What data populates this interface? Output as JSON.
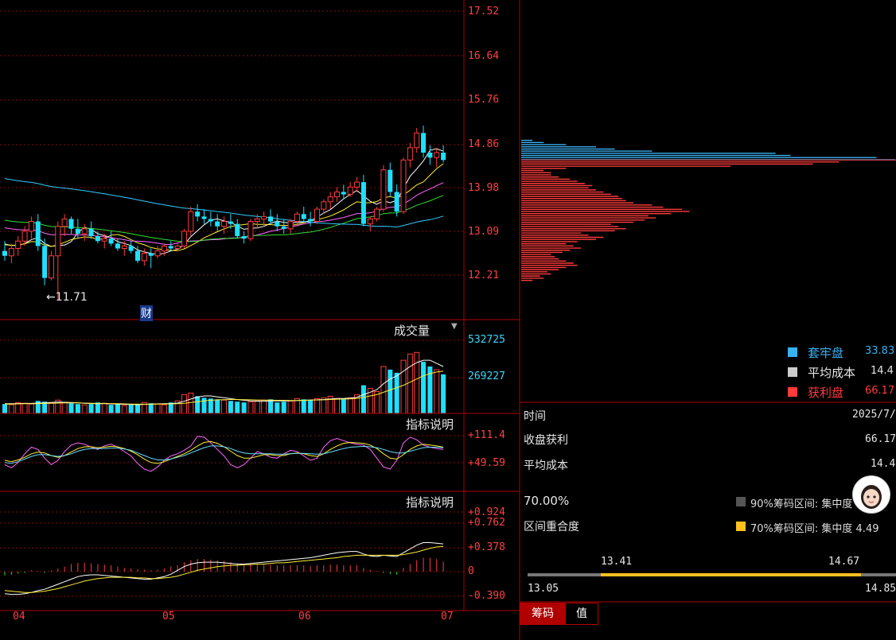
{
  "colors": {
    "up": "#ff3b3b",
    "down": "#1ee0ff",
    "grid_red": "#7a1010",
    "axis_red": "#ff4040",
    "ma5": "#ffffff",
    "ma10": "#ffee33",
    "ma20": "#ff66ff",
    "ma30": "#33dd33",
    "ma60": "#33ccff",
    "chip_profit": "#ff3b3b",
    "chip_trapped": "#3ab0f0",
    "orange_bar": "#ffc020"
  },
  "chart_data": {
    "type": "candlestick",
    "price_axis_ticks": [
      "17.52",
      "16.64",
      "15.76",
      "14.86",
      "13.98",
      "13.09",
      "12.21"
    ],
    "ylim": [
      11.48,
      17.6
    ],
    "low_marker": "11.71",
    "x_tick_labels": [
      "04",
      "05",
      "06",
      "07"
    ],
    "x_tick_index": [
      2,
      34,
      66,
      98
    ],
    "event_marker": "财",
    "ohlc": [
      [
        12.7,
        12.9,
        12.5,
        12.6
      ],
      [
        12.6,
        12.85,
        12.45,
        12.75
      ],
      [
        12.75,
        13.0,
        12.6,
        12.9
      ],
      [
        12.9,
        13.2,
        12.8,
        13.1
      ],
      [
        13.1,
        13.4,
        12.95,
        13.3
      ],
      [
        13.3,
        13.45,
        12.7,
        12.8
      ],
      [
        12.8,
        12.95,
        12.0,
        12.15
      ],
      [
        12.15,
        12.7,
        12.1,
        12.6
      ],
      [
        12.6,
        13.3,
        11.71,
        13.2
      ],
      [
        13.2,
        13.45,
        13.0,
        13.35
      ],
      [
        13.35,
        13.4,
        13.05,
        13.15
      ],
      [
        13.15,
        13.35,
        12.95,
        13.05
      ],
      [
        13.05,
        13.25,
        12.9,
        13.15
      ],
      [
        13.15,
        13.3,
        12.95,
        13.0
      ],
      [
        13.0,
        13.1,
        12.85,
        12.9
      ],
      [
        12.9,
        13.05,
        12.75,
        12.95
      ],
      [
        12.95,
        13.1,
        12.8,
        12.85
      ],
      [
        12.85,
        12.95,
        12.7,
        12.75
      ],
      [
        12.75,
        12.9,
        12.6,
        12.8
      ],
      [
        12.8,
        12.9,
        12.65,
        12.7
      ],
      [
        12.7,
        12.8,
        12.45,
        12.5
      ],
      [
        12.5,
        12.75,
        12.4,
        12.65
      ],
      [
        12.65,
        12.75,
        12.35,
        12.6
      ],
      [
        12.6,
        12.8,
        12.55,
        12.7
      ],
      [
        12.7,
        12.85,
        12.6,
        12.8
      ],
      [
        12.8,
        12.9,
        12.7,
        12.75
      ],
      [
        12.75,
        12.85,
        12.7,
        12.8
      ],
      [
        12.8,
        13.15,
        12.75,
        13.1
      ],
      [
        13.1,
        13.6,
        13.0,
        13.5
      ],
      [
        13.5,
        13.65,
        13.3,
        13.4
      ],
      [
        13.4,
        13.55,
        13.25,
        13.35
      ],
      [
        13.35,
        13.5,
        13.2,
        13.3
      ],
      [
        13.3,
        13.45,
        13.1,
        13.2
      ],
      [
        13.2,
        13.4,
        13.05,
        13.3
      ],
      [
        13.3,
        13.45,
        13.15,
        13.25
      ],
      [
        13.25,
        13.35,
        12.95,
        13.0
      ],
      [
        13.0,
        13.1,
        12.85,
        12.95
      ],
      [
        12.95,
        13.35,
        12.9,
        13.3
      ],
      [
        13.3,
        13.45,
        13.15,
        13.35
      ],
      [
        13.35,
        13.5,
        13.2,
        13.4
      ],
      [
        13.4,
        13.55,
        13.25,
        13.3
      ],
      [
        13.3,
        13.45,
        13.1,
        13.2
      ],
      [
        13.2,
        13.35,
        13.05,
        13.15
      ],
      [
        13.15,
        13.35,
        13.05,
        13.3
      ],
      [
        13.3,
        13.5,
        13.2,
        13.45
      ],
      [
        13.45,
        13.6,
        13.3,
        13.35
      ],
      [
        13.35,
        13.5,
        13.2,
        13.3
      ],
      [
        13.3,
        13.6,
        13.25,
        13.55
      ],
      [
        13.55,
        13.75,
        13.45,
        13.7
      ],
      [
        13.7,
        13.9,
        13.55,
        13.8
      ],
      [
        13.8,
        14.0,
        13.7,
        13.9
      ],
      [
        13.9,
        14.05,
        13.75,
        13.85
      ],
      [
        13.85,
        14.1,
        13.8,
        14.0
      ],
      [
        14.0,
        14.2,
        13.9,
        14.1
      ],
      [
        14.1,
        14.25,
        13.2,
        13.25
      ],
      [
        13.25,
        13.4,
        13.1,
        13.35
      ],
      [
        13.35,
        13.6,
        13.3,
        13.55
      ],
      [
        13.55,
        14.45,
        13.5,
        14.35
      ],
      [
        14.35,
        14.5,
        13.8,
        13.9
      ],
      [
        13.9,
        14.05,
        13.4,
        13.5
      ],
      [
        13.5,
        14.6,
        13.45,
        14.55
      ],
      [
        14.55,
        14.9,
        14.4,
        14.8
      ],
      [
        14.8,
        15.2,
        14.7,
        15.1
      ],
      [
        15.1,
        15.25,
        14.6,
        14.7
      ],
      [
        14.7,
        14.85,
        14.45,
        14.6
      ],
      [
        14.6,
        14.8,
        14.4,
        14.7
      ],
      [
        14.7,
        14.85,
        14.5,
        14.55
      ]
    ],
    "volume_panel": {
      "title": "成交量",
      "ticks": [
        "532725",
        "269227"
      ],
      "ymax": 600000,
      "values": [
        60000,
        55000,
        70000,
        65000,
        60000,
        80000,
        75000,
        70000,
        85000,
        70000,
        65000,
        60000,
        55000,
        60000,
        70000,
        65000,
        55000,
        60000,
        50000,
        55000,
        60000,
        70000,
        65000,
        60000,
        55000,
        70000,
        80000,
        120000,
        130000,
        110000,
        100000,
        95000,
        90000,
        85000,
        80000,
        75000,
        70000,
        75000,
        80000,
        85000,
        90000,
        70000,
        75000,
        80000,
        95000,
        90000,
        85000,
        95000,
        100000,
        110000,
        95000,
        90000,
        100000,
        120000,
        180000,
        160000,
        140000,
        300000,
        280000,
        260000,
        340000,
        380000,
        390000,
        330000,
        300000,
        280000,
        250000
      ],
      "ma_a": [
        62000,
        62000,
        63000,
        64000,
        64000,
        66000,
        68000,
        70000,
        72000,
        71000,
        70000,
        68000,
        65000,
        63000,
        62000,
        62000,
        61000,
        60000,
        58000,
        57000,
        56000,
        58000,
        60000,
        61000,
        62000,
        63000,
        66000,
        78000,
        92000,
        104000,
        112000,
        112000,
        106000,
        100000,
        94000,
        89000,
        84000,
        80000,
        78000,
        78000,
        80000,
        80000,
        80000,
        80000,
        82000,
        84000,
        86000,
        87000,
        89000,
        92000,
        95000,
        96000,
        98000,
        103000,
        120000,
        136000,
        152000,
        190000,
        220000,
        240000,
        270000,
        300000,
        325000,
        340000,
        340000,
        320000,
        300000
      ],
      "ma_b": [
        60000,
        60000,
        61000,
        62000,
        62000,
        63000,
        64000,
        65000,
        66000,
        67000,
        67000,
        67000,
        66000,
        65000,
        64000,
        64000,
        63000,
        62000,
        61000,
        60000,
        59000,
        59000,
        59000,
        60000,
        60000,
        61000,
        62000,
        65000,
        70000,
        75000,
        80000,
        84000,
        87000,
        88000,
        89000,
        89000,
        88000,
        87000,
        86000,
        85000,
        85000,
        84000,
        84000,
        83000,
        83000,
        84000,
        85000,
        86000,
        87000,
        89000,
        91000,
        92000,
        93000,
        96000,
        103000,
        112000,
        120000,
        135000,
        150000,
        165000,
        180000,
        200000,
        220000,
        240000,
        255000,
        265000,
        270000
      ]
    },
    "indicator1": {
      "title": "指标说明",
      "ticks": [
        "+111.4",
        "+49.59"
      ],
      "ylim": [
        10,
        125
      ],
      "line_a": [
        45,
        38,
        50,
        70,
        85,
        80,
        60,
        45,
        55,
        75,
        90,
        95,
        92,
        85,
        80,
        88,
        92,
        85,
        75,
        65,
        48,
        35,
        30,
        40,
        55,
        65,
        70,
        78,
        88,
        110,
        108,
        95,
        80,
        65,
        45,
        38,
        45,
        60,
        75,
        70,
        62,
        60,
        70,
        78,
        75,
        65,
        55,
        60,
        85,
        100,
        105,
        100,
        95,
        92,
        90,
        80,
        60,
        40,
        35,
        55,
        95,
        108,
        102,
        90,
        85,
        82,
        80
      ],
      "line_b": [
        55,
        52,
        56,
        62,
        70,
        74,
        72,
        66,
        62,
        66,
        74,
        82,
        86,
        86,
        84,
        85,
        87,
        86,
        82,
        76,
        68,
        58,
        50,
        48,
        52,
        58,
        64,
        70,
        78,
        88,
        96,
        98,
        94,
        86,
        76,
        66,
        60,
        60,
        64,
        68,
        68,
        66,
        66,
        70,
        72,
        70,
        66,
        64,
        70,
        80,
        88,
        94,
        96,
        95,
        94,
        90,
        82,
        70,
        60,
        58,
        68,
        80,
        88,
        92,
        90,
        88,
        85
      ],
      "line_c": [
        50,
        48,
        52,
        58,
        64,
        68,
        68,
        66,
        64,
        66,
        70,
        76,
        80,
        82,
        82,
        82,
        83,
        83,
        81,
        78,
        72,
        66,
        60,
        56,
        56,
        58,
        62,
        66,
        72,
        78,
        84,
        88,
        88,
        86,
        82,
        76,
        72,
        70,
        70,
        70,
        70,
        69,
        69,
        70,
        71,
        71,
        70,
        69,
        70,
        74,
        78,
        82,
        85,
        86,
        87,
        86,
        84,
        80,
        75,
        72,
        72,
        76,
        80,
        84,
        85,
        85,
        84
      ]
    },
    "indicator2": {
      "title": "指标说明",
      "ticks": [
        "+0.924",
        "+0.762",
        "+0.378",
        "0",
        "-0.390"
      ],
      "ylim": [
        -0.48,
        1.0
      ],
      "bars": [
        -0.06,
        -0.05,
        -0.03,
        -0.02,
        0.02,
        0.01,
        -0.02,
        0.02,
        0.05,
        0.08,
        0.12,
        0.14,
        0.14,
        0.13,
        0.12,
        0.11,
        0.1,
        0.08,
        0.06,
        0.05,
        0.04,
        0.03,
        0.02,
        0.03,
        0.05,
        0.08,
        0.1,
        0.15,
        0.18,
        0.2,
        0.2,
        0.19,
        0.18,
        0.17,
        0.15,
        0.13,
        0.12,
        0.12,
        0.12,
        0.11,
        0.11,
        0.1,
        0.1,
        0.1,
        0.1,
        0.1,
        0.09,
        0.1,
        0.1,
        0.11,
        0.11,
        0.1,
        0.1,
        0.1,
        0.06,
        0.03,
        0.01,
        -0.02,
        -0.04,
        -0.05,
        0.06,
        0.12,
        0.18,
        0.22,
        0.22,
        0.2,
        0.16
      ],
      "dif": [
        -0.35,
        -0.36,
        -0.36,
        -0.35,
        -0.33,
        -0.3,
        -0.28,
        -0.24,
        -0.2,
        -0.16,
        -0.12,
        -0.08,
        -0.06,
        -0.05,
        -0.05,
        -0.06,
        -0.07,
        -0.08,
        -0.09,
        -0.1,
        -0.11,
        -0.12,
        -0.12,
        -0.1,
        -0.08,
        -0.04,
        0.02,
        0.08,
        0.12,
        0.14,
        0.15,
        0.15,
        0.15,
        0.14,
        0.13,
        0.12,
        0.12,
        0.13,
        0.14,
        0.15,
        0.16,
        0.17,
        0.18,
        0.19,
        0.2,
        0.21,
        0.22,
        0.24,
        0.26,
        0.28,
        0.3,
        0.31,
        0.32,
        0.32,
        0.28,
        0.25,
        0.24,
        0.26,
        0.25,
        0.24,
        0.3,
        0.36,
        0.42,
        0.46,
        0.46,
        0.45,
        0.44
      ],
      "dea": [
        -0.3,
        -0.31,
        -0.32,
        -0.33,
        -0.33,
        -0.32,
        -0.31,
        -0.29,
        -0.27,
        -0.24,
        -0.21,
        -0.18,
        -0.15,
        -0.13,
        -0.11,
        -0.1,
        -0.09,
        -0.09,
        -0.09,
        -0.09,
        -0.1,
        -0.1,
        -0.11,
        -0.11,
        -0.1,
        -0.09,
        -0.07,
        -0.04,
        -0.01,
        0.02,
        0.04,
        0.06,
        0.08,
        0.09,
        0.1,
        0.1,
        0.11,
        0.11,
        0.12,
        0.12,
        0.13,
        0.14,
        0.14,
        0.15,
        0.16,
        0.17,
        0.18,
        0.19,
        0.2,
        0.21,
        0.22,
        0.24,
        0.25,
        0.26,
        0.26,
        0.26,
        0.26,
        0.26,
        0.26,
        0.26,
        0.27,
        0.29,
        0.31,
        0.34,
        0.37,
        0.39,
        0.4
      ]
    },
    "chip_distribution": {
      "price_min": 12.1,
      "price_max": 14.95,
      "current_price": 14.55,
      "bars": [
        0.03,
        0.06,
        0.05,
        0.08,
        0.07,
        0.1,
        0.12,
        0.15,
        0.14,
        0.12,
        0.1,
        0.09,
        0.08,
        0.11,
        0.13,
        0.16,
        0.14,
        0.12,
        0.15,
        0.2,
        0.22,
        0.18,
        0.16,
        0.25,
        0.28,
        0.26,
        0.24,
        0.3,
        0.33,
        0.36,
        0.34,
        0.4,
        0.45,
        0.43,
        0.38,
        0.35,
        0.3,
        0.28,
        0.27,
        0.26,
        0.24,
        0.22,
        0.2,
        0.18,
        0.19,
        0.17,
        0.15,
        0.13,
        0.1,
        0.08,
        0.08,
        0.06,
        0.12,
        0.56,
        0.78,
        0.85,
        1.0,
        0.95,
        0.72,
        0.68,
        0.35,
        0.25,
        0.2,
        0.12,
        0.06,
        0.03
      ]
    }
  },
  "chip_panel": {
    "legend": [
      {
        "label": "套牢盘",
        "value": "33.83"
      },
      {
        "label": "平均成本",
        "value": "14.4"
      },
      {
        "label": "获利盘",
        "value": "66.17"
      }
    ],
    "rows": [
      {
        "label": "时间",
        "value": "2025/7/"
      },
      {
        "label": "收盘获利",
        "value": "66.17"
      },
      {
        "label": "平均成本",
        "value": "14.4"
      }
    ],
    "percent": "70.00%",
    "overlap_label": "区间重合度",
    "range90": "90%筹码区间: 集中度 4.5",
    "range70": "70%筹码区间: 集中度 4.49",
    "range_bar": {
      "top_left": "13.41",
      "top_right": "14.67",
      "bottom_left": "13.05",
      "bottom_right": "14.85"
    }
  },
  "tabs": [
    "筹码",
    "值"
  ]
}
